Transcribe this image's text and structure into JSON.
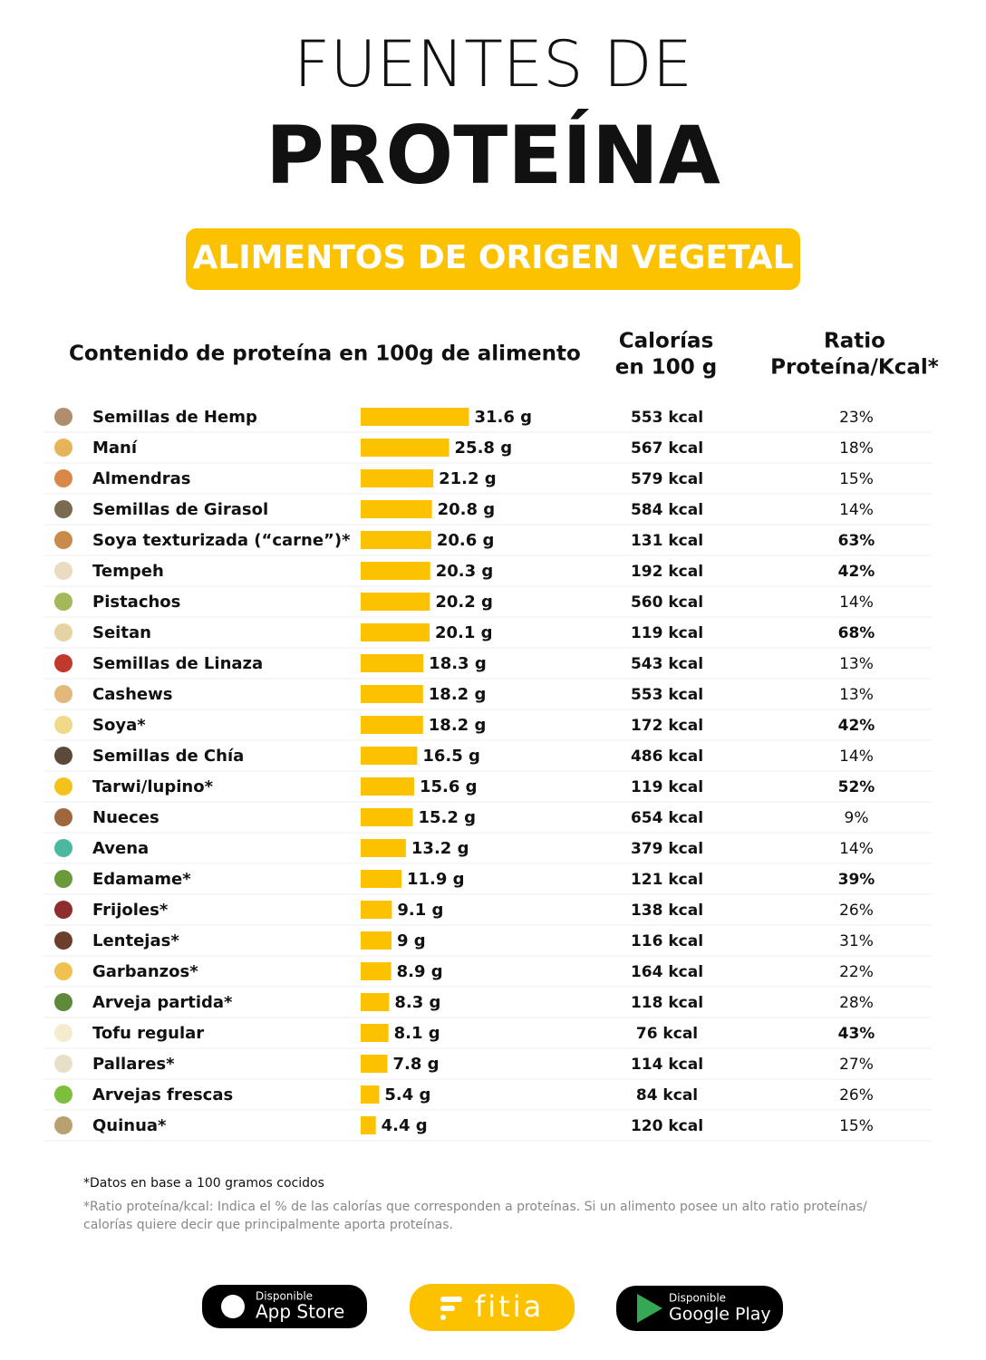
{
  "header": {
    "title_line1": "FUENTES DE",
    "title_line2": "PROTEÍNA",
    "banner": "ALIMENTOS DE ORIGEN VEGETAL"
  },
  "table": {
    "headers": [
      "Contenido de proteína en 100g de alimento",
      "Calorías",
      "en 100 g",
      "Ratio",
      "Proteína/Kcal*"
    ],
    "rows": [
      {
        "food": "Semillas de Hemp",
        "protein": 31.6,
        "protein_label": "31.6 g",
        "calories": "553 kcal",
        "ratio": "23%",
        "highlight": false
      },
      {
        "food": "Maní",
        "protein": 25.8,
        "protein_label": "25.8 g",
        "calories": "567 kcal",
        "ratio": "18%",
        "highlight": false
      },
      {
        "food": "Almendras",
        "protein": 21.2,
        "protein_label": "21.2 g",
        "calories": "579 kcal",
        "ratio": "15%",
        "highlight": false
      },
      {
        "food": "Semillas de Girasol",
        "protein": 20.8,
        "protein_label": "20.8 g",
        "calories": "584 kcal",
        "ratio": "14%",
        "highlight": false
      },
      {
        "food": "Soya texturizada (“carne”)*",
        "protein": 20.6,
        "protein_label": "20.6 g",
        "calories": "131 kcal",
        "ratio": "63%",
        "highlight": true
      },
      {
        "food": "Tempeh",
        "protein": 20.3,
        "protein_label": "20.3 g",
        "calories": "192 kcal",
        "ratio": "42%",
        "highlight": true
      },
      {
        "food": "Pistachos",
        "protein": 20.2,
        "protein_label": "20.2 g",
        "calories": "560 kcal",
        "ratio": "14%",
        "highlight": false
      },
      {
        "food": "Seitan",
        "protein": 20.1,
        "protein_label": "20.1 g",
        "calories": "119 kcal",
        "ratio": "68%",
        "highlight": true
      },
      {
        "food": "Semillas de Linaza",
        "protein": 18.3,
        "protein_label": "18.3 g",
        "calories": "543 kcal",
        "ratio": "13%",
        "highlight": false
      },
      {
        "food": "Cashews",
        "protein": 18.2,
        "protein_label": "18.2 g",
        "calories": "553 kcal",
        "ratio": "13%",
        "highlight": false
      },
      {
        "food": "Soya*",
        "protein": 18.2,
        "protein_label": "18.2 g",
        "calories": "172 kcal",
        "ratio": "42%",
        "highlight": true
      },
      {
        "food": "Semillas de Chía",
        "protein": 16.5,
        "protein_label": "16.5 g",
        "calories": "486 kcal",
        "ratio": "14%",
        "highlight": false
      },
      {
        "food": "Tarwi/lupino*",
        "protein": 15.6,
        "protein_label": "15.6 g",
        "calories": "119 kcal",
        "ratio": "52%",
        "highlight": true
      },
      {
        "food": "Nueces",
        "protein": 15.2,
        "protein_label": "15.2 g",
        "calories": "654 kcal",
        "ratio": "9%",
        "highlight": false
      },
      {
        "food": "Avena",
        "protein": 13.2,
        "protein_label": "13.2 g",
        "calories": "379 kcal",
        "ratio": "14%",
        "highlight": false
      },
      {
        "food": "Edamame*",
        "protein": 11.9,
        "protein_label": "11.9 g",
        "calories": "121 kcal",
        "ratio": "39%",
        "highlight": true
      },
      {
        "food": "Frijoles*",
        "protein": 9.1,
        "protein_label": "9.1 g",
        "calories": "138 kcal",
        "ratio": "26%",
        "highlight": false
      },
      {
        "food": "Lentejas*",
        "protein": 9,
        "protein_label": "9 g",
        "calories": "116 kcal",
        "ratio": "31%",
        "highlight": false
      },
      {
        "food": "Garbanzos*",
        "protein": 8.9,
        "protein_label": "8.9 g",
        "calories": "164 kcal",
        "ratio": "22%",
        "highlight": false
      },
      {
        "food": "Arveja partida*",
        "protein": 8.3,
        "protein_label": "8.3 g",
        "calories": "118 kcal",
        "ratio": "28%",
        "highlight": false
      },
      {
        "food": "Tofu regular",
        "protein": 8.1,
        "protein_label": "8.1 g",
        "calories": "76 kcal",
        "ratio": "43%",
        "highlight": true
      },
      {
        "food": "Pallares*",
        "protein": 7.8,
        "protein_label": "7.8 g",
        "calories": "114 kcal",
        "ratio": "27%",
        "highlight": false
      },
      {
        "food": "Arvejas frescas",
        "protein": 5.4,
        "protein_label": "5.4 g",
        "calories": "84 kcal",
        "ratio": "26%",
        "highlight": false
      },
      {
        "food": "Quinua*",
        "protein": 4.4,
        "protein_label": "4.4 g",
        "calories": "120 kcal",
        "ratio": "15%",
        "highlight": false
      }
    ]
  },
  "footnotes": [
    "*Datos en base a 100 gramos cocidos",
    "*Ratio proteína/kcal: Indica el % de las calorías que corresponden a proteínas. Si un alimento posee un alto ratio proteínas/",
    "calorías quiere decir que principalmente aporta proteínas."
  ],
  "footer": {
    "appstore_small": "Disponible",
    "appstore": "App Store",
    "brand": "fitia",
    "play_small": "Disponible",
    "play": "Google Play"
  }
}
